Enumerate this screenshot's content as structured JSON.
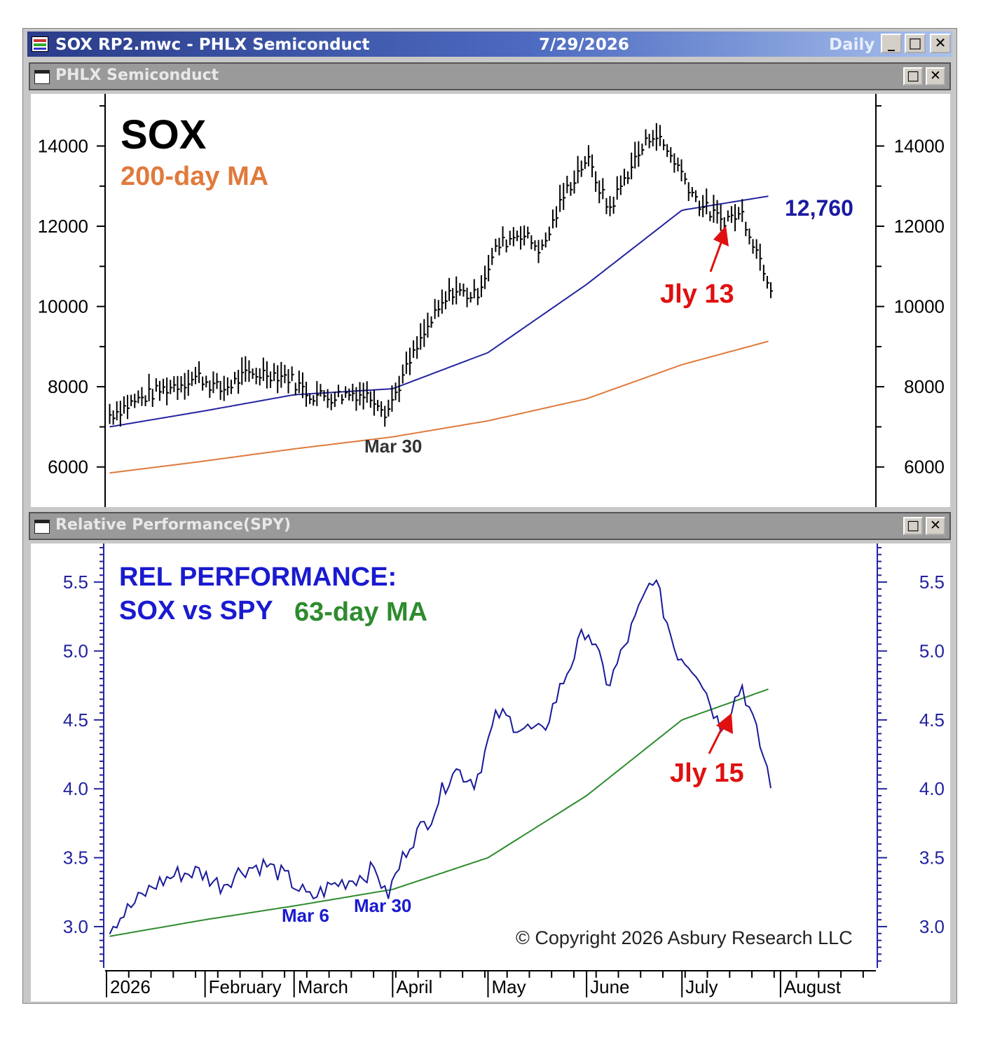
{
  "window": {
    "title": "SOX RP2.mwc - PHLX Semiconduct",
    "date": "7/29/2026",
    "interval": "Daily",
    "minimize_glyph": "_",
    "maximize_glyph": "□",
    "close_glyph": "✕"
  },
  "pane_top": {
    "title": "PHLX Semiconduct",
    "icon": "window-icon"
  },
  "pane_bottom": {
    "title": "Relative Performance(SPY)",
    "icon": "window-icon"
  },
  "colors": {
    "price": "#000000",
    "ma_blue": "#2323a0",
    "ma_200": "#e07a3c",
    "rel_line": "#1a1a9a",
    "ma_63": "#2e8b2e",
    "accent_red": "#e01010"
  },
  "chart_data": [
    {
      "type": "line",
      "panel": "top",
      "title": "SOX",
      "subtitle": "200-day MA",
      "ylim": [
        5000,
        15300
      ],
      "yticks": [
        6000,
        8000,
        10000,
        12000,
        14000
      ],
      "ytick_labels": [
        "6000",
        "8000",
        "10000",
        "12000",
        "14000"
      ],
      "grid": false,
      "series": [
        {
          "name": "SOX",
          "style": "ohlc-bars",
          "x": [
            "2026-01-02",
            "2026-01-09",
            "2026-01-16",
            "2026-01-23",
            "2026-01-30",
            "2026-02-06",
            "2026-02-13",
            "2026-02-20",
            "2026-02-27",
            "2026-03-06",
            "2026-03-13",
            "2026-03-20",
            "2026-03-27",
            "2026-03-30",
            "2026-04-06",
            "2026-04-13",
            "2026-04-20",
            "2026-04-27",
            "2026-05-04",
            "2026-05-11",
            "2026-05-18",
            "2026-05-25",
            "2026-06-01",
            "2026-06-08",
            "2026-06-15",
            "2026-06-22",
            "2026-06-29",
            "2026-07-06",
            "2026-07-13",
            "2026-07-20",
            "2026-07-29"
          ],
          "values": [
            7300,
            7600,
            7850,
            8050,
            8250,
            7900,
            8250,
            8350,
            8250,
            7800,
            7750,
            7850,
            7700,
            7350,
            8550,
            9600,
            10400,
            10250,
            11500,
            11850,
            11400,
            12800,
            13700,
            12400,
            13500,
            14350,
            13600,
            12600,
            12150,
            12300,
            10500
          ]
        },
        {
          "name": "",
          "values_start": 7000,
          "values_end": 12760,
          "x": [
            "2026-01-02",
            "2026-02-01",
            "2026-03-01",
            "2026-04-01",
            "2026-05-01",
            "2026-06-01",
            "2026-07-01",
            "2026-07-29"
          ],
          "values": [
            7000,
            7400,
            7800,
            7950,
            8850,
            10550,
            12400,
            12760
          ]
        },
        {
          "name": "200-day MA",
          "x": [
            "2026-01-02",
            "2026-02-01",
            "2026-03-01",
            "2026-04-01",
            "2026-05-01",
            "2026-06-01",
            "2026-07-01",
            "2026-07-29"
          ],
          "values": [
            5850,
            6150,
            6450,
            6750,
            7150,
            7700,
            8550,
            9150
          ]
        }
      ],
      "annotations": [
        {
          "text": "12,760"
        },
        {
          "text": "Mar 30"
        },
        {
          "text": "Jly 13"
        }
      ]
    },
    {
      "type": "line",
      "panel": "bottom",
      "title": "REL PERFORMANCE:",
      "subtitle": "SOX vs SPY",
      "ylim": [
        2.7,
        5.78
      ],
      "yticks": [
        3.0,
        3.5,
        4.0,
        4.5,
        5.0,
        5.5
      ],
      "ytick_labels": [
        "3.0",
        "3.5",
        "4.0",
        "4.5",
        "5.0",
        "5.5"
      ],
      "grid": false,
      "series": [
        {
          "name": "",
          "x": [
            "2026-01-02",
            "2026-01-09",
            "2026-01-16",
            "2026-01-23",
            "2026-01-30",
            "2026-02-06",
            "2026-02-13",
            "2026-02-20",
            "2026-02-27",
            "2026-03-06",
            "2026-03-13",
            "2026-03-20",
            "2026-03-27",
            "2026-03-30",
            "2026-04-06",
            "2026-04-13",
            "2026-04-20",
            "2026-04-27",
            "2026-05-04",
            "2026-05-11",
            "2026-05-18",
            "2026-05-25",
            "2026-06-01",
            "2026-06-08",
            "2026-06-15",
            "2026-06-22",
            "2026-06-29",
            "2026-07-06",
            "2026-07-13",
            "2026-07-20",
            "2026-07-29"
          ],
          "values": [
            3.0,
            3.15,
            3.3,
            3.38,
            3.4,
            3.3,
            3.42,
            3.45,
            3.35,
            3.2,
            3.3,
            3.35,
            3.42,
            3.2,
            3.6,
            3.8,
            4.15,
            4.05,
            4.55,
            4.45,
            4.4,
            4.8,
            5.18,
            4.75,
            5.15,
            5.55,
            5.0,
            4.85,
            4.45,
            4.75,
            4.05
          ]
        },
        {
          "name": "63-day MA",
          "x": [
            "2026-01-02",
            "2026-02-01",
            "2026-03-01",
            "2026-04-01",
            "2026-05-01",
            "2026-06-01",
            "2026-07-01",
            "2026-07-29"
          ],
          "values": [
            2.93,
            3.05,
            3.15,
            3.27,
            3.5,
            3.95,
            4.5,
            4.73
          ]
        }
      ],
      "annotations": [
        {
          "text": "Mar 6"
        },
        {
          "text": "Mar 30"
        },
        {
          "text": "Jly 15"
        }
      ],
      "copyright": "© Copyright 2026 Asbury Research LLC"
    }
  ],
  "x_axis": {
    "labels": [
      "2026",
      "February",
      "March",
      "April",
      "May",
      "June",
      "July",
      "August"
    ]
  }
}
